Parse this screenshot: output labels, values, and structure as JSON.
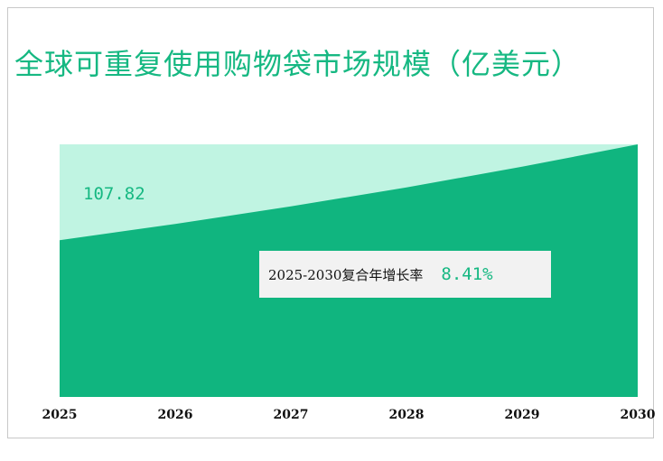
{
  "title": "全球可重复使用购物袋市场规模（亿美元）",
  "cagr": {
    "label": "2025-2030复合年增长率",
    "value": "8.41%"
  },
  "colors": {
    "area": "#10b57f",
    "band": "#c0f4e2",
    "title": "#16b882"
  },
  "chart_data": {
    "type": "area",
    "title": "全球可重复使用购物袋市场规模（亿美元）",
    "categories": [
      "2025",
      "2026",
      "2027",
      "2028",
      "2029",
      "2030"
    ],
    "x": [
      2025,
      2026,
      2027,
      2028,
      2029,
      2030
    ],
    "values": [
      107.82,
      116.89,
      126.72,
      137.38,
      148.93,
      161.46
    ],
    "data_labels": [
      "107.82"
    ],
    "ylim": [
      0,
      161.46
    ],
    "xlabel": "",
    "ylabel": "",
    "grid": false,
    "legend": "none"
  }
}
